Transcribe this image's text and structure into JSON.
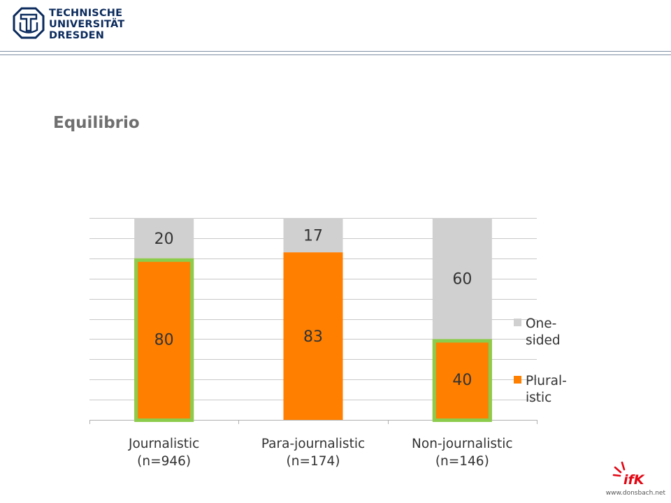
{
  "header": {
    "university_lines": [
      "TECHNISCHE",
      "UNIVERSITÄT",
      "DRESDEN"
    ]
  },
  "page": {
    "title": "Equilibrio",
    "footer_url": "www.donsbach.net"
  },
  "colors": {
    "plural": "#ff7f00",
    "one_sided": "#d0d0d0",
    "highlight": "#8ccc4c",
    "grid": "#c8c8c8",
    "text": "#333333",
    "tu_blue": "#0a2a5c",
    "ifk_red": "#e30613"
  },
  "chart_data": {
    "type": "bar",
    "stacked": true,
    "categories": [
      [
        "Journalistic",
        "(n=946)"
      ],
      [
        "Para-journalistic",
        "(n=174)"
      ],
      [
        "Non-journalistic",
        "(n=146)"
      ]
    ],
    "series": [
      {
        "name": "Plural-istic",
        "legend_lines": [
          "Plural-",
          "istic"
        ],
        "values": [
          80,
          83,
          40
        ]
      },
      {
        "name": "One-sided",
        "legend_lines": [
          "One-",
          "sided"
        ],
        "values": [
          20,
          17,
          60
        ]
      }
    ],
    "ylim": [
      0,
      100
    ],
    "grid": true,
    "gridline_count": 10,
    "y_axis_labels_shown": false,
    "legend_position": "right",
    "highlighted_categories": [
      "Journalistic",
      "Non-journalistic"
    ]
  }
}
